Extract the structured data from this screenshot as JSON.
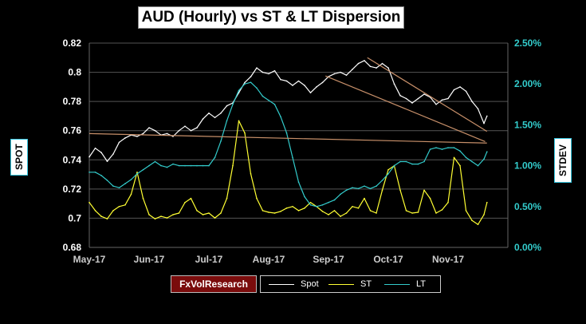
{
  "chart_data": {
    "type": "line",
    "title": "AUD (Hourly) vs ST & LT Dispersion",
    "ylabel_left": "SPOT",
    "ylabel_right": "STDEV",
    "left_axis": {
      "ylim": [
        0.68,
        0.82
      ],
      "ticks": [
        "0.82",
        "0.8",
        "0.78",
        "0.76",
        "0.74",
        "0.72",
        "0.7",
        "0.68"
      ]
    },
    "right_axis": {
      "ylim": [
        0.0,
        2.5
      ],
      "ticks": [
        "2.50%",
        "2.00%",
        "1.50%",
        "1.00%",
        "0.50%",
        "0.00%"
      ]
    },
    "x_ticks": [
      "May-17",
      "Jun-17",
      "Jul-17",
      "Aug-17",
      "Sep-17",
      "Oct-17",
      "Nov-17"
    ],
    "x_domain": [
      0,
      7
    ],
    "grid": "horizontal",
    "colors": {
      "spot": "#ffffff",
      "st": "#ffff33",
      "lt": "#33cccc",
      "trend": "#c8906a",
      "grid": "#555555",
      "left_tick": "#ffffff",
      "right_tick": "#33cccc"
    },
    "series": [
      {
        "name": "Spot",
        "axis": "left",
        "color": "#ffffff",
        "x": [
          0.0,
          0.1,
          0.2,
          0.3,
          0.4,
          0.5,
          0.6,
          0.7,
          0.8,
          0.9,
          1.0,
          1.1,
          1.2,
          1.3,
          1.4,
          1.5,
          1.6,
          1.7,
          1.8,
          1.9,
          2.0,
          2.1,
          2.2,
          2.3,
          2.4,
          2.5,
          2.6,
          2.7,
          2.8,
          2.9,
          3.0,
          3.1,
          3.2,
          3.3,
          3.4,
          3.5,
          3.6,
          3.7,
          3.8,
          3.9,
          4.0,
          4.1,
          4.2,
          4.3,
          4.4,
          4.5,
          4.6,
          4.7,
          4.8,
          4.9,
          5.0,
          5.1,
          5.2,
          5.3,
          5.4,
          5.5,
          5.6,
          5.7,
          5.8,
          5.9,
          6.0,
          6.1,
          6.2,
          6.3,
          6.4,
          6.5,
          6.6,
          6.65
        ],
        "values": [
          0.742,
          0.748,
          0.745,
          0.739,
          0.744,
          0.752,
          0.755,
          0.757,
          0.756,
          0.758,
          0.762,
          0.76,
          0.757,
          0.758,
          0.756,
          0.76,
          0.763,
          0.76,
          0.762,
          0.768,
          0.772,
          0.769,
          0.772,
          0.777,
          0.779,
          0.786,
          0.793,
          0.797,
          0.803,
          0.8,
          0.799,
          0.801,
          0.795,
          0.794,
          0.791,
          0.794,
          0.791,
          0.786,
          0.79,
          0.793,
          0.797,
          0.799,
          0.8,
          0.798,
          0.802,
          0.806,
          0.808,
          0.804,
          0.803,
          0.806,
          0.803,
          0.792,
          0.784,
          0.782,
          0.779,
          0.782,
          0.785,
          0.783,
          0.778,
          0.781,
          0.782,
          0.788,
          0.79,
          0.787,
          0.78,
          0.775,
          0.765,
          0.77
        ],
        "values_tail": []
      },
      {
        "name": "ST",
        "axis": "right",
        "color": "#ffff33",
        "x": [
          0.0,
          0.1,
          0.2,
          0.3,
          0.4,
          0.5,
          0.6,
          0.7,
          0.8,
          0.9,
          1.0,
          1.1,
          1.2,
          1.3,
          1.4,
          1.5,
          1.6,
          1.7,
          1.8,
          1.9,
          2.0,
          2.1,
          2.2,
          2.3,
          2.4,
          2.5,
          2.6,
          2.7,
          2.8,
          2.9,
          3.0,
          3.1,
          3.2,
          3.3,
          3.4,
          3.5,
          3.6,
          3.7,
          3.8,
          3.9,
          4.0,
          4.1,
          4.2,
          4.3,
          4.4,
          4.5,
          4.6,
          4.7,
          4.8,
          4.9,
          5.0,
          5.1,
          5.2,
          5.3,
          5.4,
          5.5,
          5.6,
          5.7,
          5.8,
          5.9,
          6.0,
          6.1,
          6.2,
          6.3,
          6.4,
          6.5,
          6.6,
          6.65
        ],
        "values": [
          0.55,
          0.45,
          0.38,
          0.35,
          0.45,
          0.5,
          0.52,
          0.65,
          0.92,
          0.6,
          0.4,
          0.35,
          0.38,
          0.36,
          0.4,
          0.42,
          0.55,
          0.6,
          0.45,
          0.4,
          0.42,
          0.36,
          0.42,
          0.6,
          1.0,
          1.55,
          1.4,
          0.9,
          0.6,
          0.45,
          0.43,
          0.42,
          0.44,
          0.48,
          0.5,
          0.45,
          0.48,
          0.55,
          0.5,
          0.44,
          0.4,
          0.45,
          0.38,
          0.42,
          0.5,
          0.48,
          0.6,
          0.45,
          0.42,
          0.7,
          0.95,
          1.0,
          0.7,
          0.45,
          0.42,
          0.43,
          0.7,
          0.6,
          0.42,
          0.46,
          0.55,
          1.1,
          1.0,
          0.45,
          0.33,
          0.28,
          0.4,
          0.55
        ],
        "values_tail": []
      },
      {
        "name": "LT",
        "axis": "right",
        "color": "#33cccc",
        "x": [
          0.0,
          0.1,
          0.2,
          0.3,
          0.4,
          0.5,
          0.6,
          0.7,
          0.8,
          0.9,
          1.0,
          1.1,
          1.2,
          1.3,
          1.4,
          1.5,
          1.6,
          1.7,
          1.8,
          1.9,
          2.0,
          2.1,
          2.2,
          2.3,
          2.4,
          2.5,
          2.6,
          2.7,
          2.8,
          2.9,
          3.0,
          3.1,
          3.2,
          3.3,
          3.4,
          3.5,
          3.6,
          3.7,
          3.8,
          3.9,
          4.0,
          4.1,
          4.2,
          4.3,
          4.4,
          4.5,
          4.6,
          4.7,
          4.8,
          4.9,
          5.0,
          5.1,
          5.2,
          5.3,
          5.4,
          5.5,
          5.6,
          5.7,
          5.8,
          5.9,
          6.0,
          6.1,
          6.2,
          6.3,
          6.4,
          6.5,
          6.6,
          6.65
        ],
        "values": [
          0.92,
          0.92,
          0.88,
          0.82,
          0.75,
          0.73,
          0.78,
          0.83,
          0.9,
          0.95,
          1.0,
          1.05,
          1.0,
          0.98,
          1.02,
          1.0,
          1.0,
          1.0,
          1.0,
          1.0,
          1.0,
          1.1,
          1.3,
          1.55,
          1.75,
          1.92,
          2.0,
          2.02,
          1.95,
          1.85,
          1.8,
          1.75,
          1.6,
          1.4,
          1.1,
          0.8,
          0.62,
          0.52,
          0.5,
          0.52,
          0.55,
          0.58,
          0.65,
          0.7,
          0.73,
          0.72,
          0.75,
          0.72,
          0.75,
          0.82,
          0.9,
          1.0,
          1.05,
          1.05,
          1.02,
          1.02,
          1.05,
          1.2,
          1.22,
          1.2,
          1.22,
          1.22,
          1.18,
          1.1,
          1.05,
          1.0,
          1.08,
          1.17
        ],
        "values_tail": []
      }
    ],
    "trendlines": [
      {
        "x": [
          0.0,
          6.65
        ],
        "y": [
          0.758,
          0.7515
        ],
        "axis": "left",
        "color": "#c8906a"
      },
      {
        "x": [
          3.95,
          6.62
        ],
        "y": [
          0.7975,
          0.7525
        ],
        "axis": "left",
        "color": "#c8906a"
      },
      {
        "x": [
          4.65,
          6.65
        ],
        "y": [
          0.81,
          0.7595
        ],
        "axis": "left",
        "color": "#c8906a"
      }
    ],
    "legend": {
      "position": "bottom",
      "items": [
        "Spot",
        "ST",
        "LT"
      ]
    }
  },
  "brand": "FxVolResearch"
}
